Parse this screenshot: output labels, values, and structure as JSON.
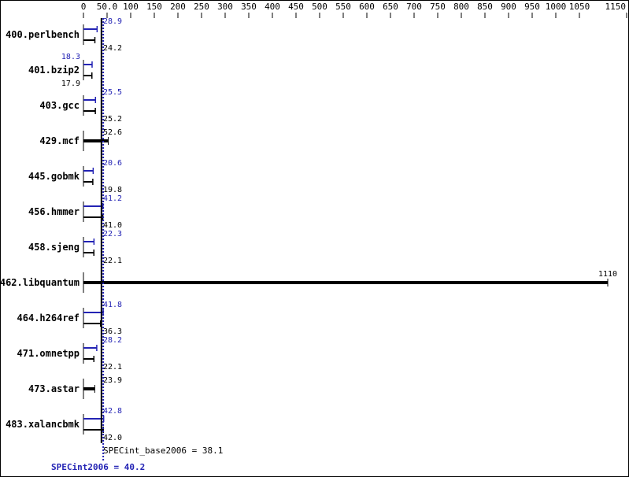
{
  "chart_data": {
    "type": "bar",
    "orientation": "horizontal",
    "xlim": [
      0,
      1150
    ],
    "x_ticks": [
      "0",
      "50.0",
      "100",
      "150",
      "200",
      "250",
      "300",
      "350",
      "400",
      "450",
      "500",
      "550",
      "600",
      "650",
      "700",
      "750",
      "800",
      "850",
      "900",
      "950",
      "1000",
      "1050",
      "1150"
    ],
    "x_tick_values": [
      0,
      50,
      100,
      150,
      200,
      250,
      300,
      350,
      400,
      450,
      500,
      550,
      600,
      650,
      700,
      750,
      800,
      850,
      900,
      950,
      1000,
      1050,
      1150
    ],
    "categories": [
      "400.perlbench",
      "401.bzip2",
      "403.gcc",
      "429.mcf",
      "445.gobmk",
      "456.hmmer",
      "458.sjeng",
      "462.libquantum",
      "464.h264ref",
      "471.omnetpp",
      "473.astar",
      "483.xalancbmk"
    ],
    "series": [
      {
        "name": "SPECint2006",
        "color": "#2323b4",
        "values": [
          28.9,
          18.3,
          25.5,
          null,
          20.6,
          41.2,
          22.3,
          null,
          41.8,
          28.2,
          null,
          42.8
        ]
      },
      {
        "name": "SPECint_base2006",
        "color": "#000000",
        "values": [
          24.2,
          17.9,
          25.2,
          52.6,
          19.8,
          41.0,
          22.1,
          1110,
          36.3,
          22.1,
          23.9,
          42.0
        ]
      }
    ],
    "value_labels": {
      "peak": [
        "28.9",
        "18.3",
        "25.5",
        "",
        "20.6",
        "41.2",
        "22.3",
        "",
        "41.8",
        "28.2",
        "",
        "42.8"
      ],
      "base": [
        "24.2",
        "17.9",
        "25.2",
        "52.6",
        "19.8",
        "41.0",
        "22.1",
        "1110",
        "36.3",
        "22.1",
        "23.9",
        "42.0"
      ]
    },
    "base_mean": 38.1,
    "peak_mean": 40.2,
    "base_mean_label": "SPECint_base2006 = 38.1",
    "peak_mean_label": "SPECint2006 = 40.2"
  }
}
